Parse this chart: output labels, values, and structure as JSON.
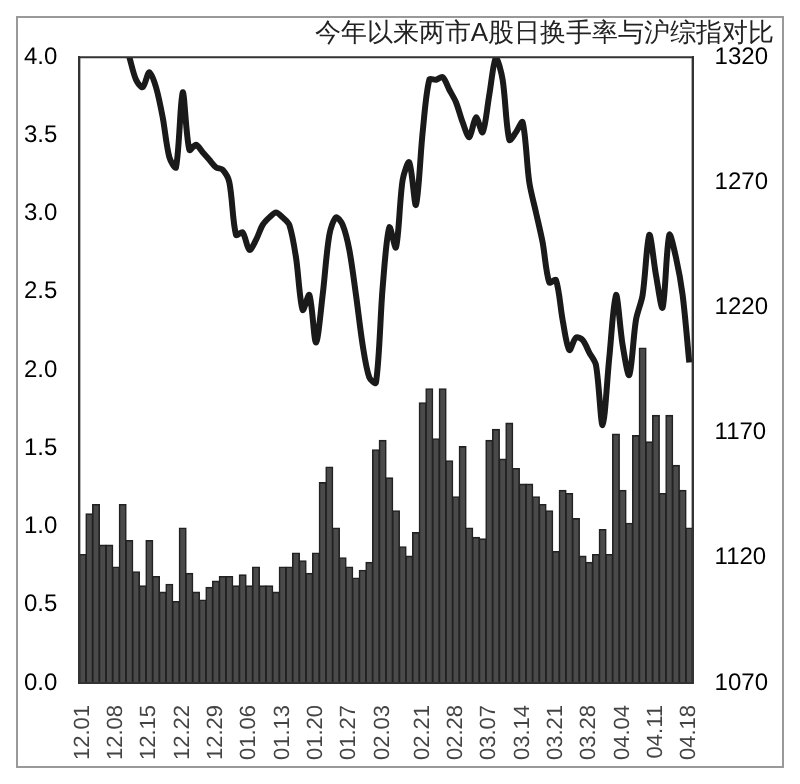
{
  "chart_data": {
    "type": "bar",
    "title": "今年以来两市A股日换手率与沪综指对比",
    "categories": [
      "12.01",
      null,
      null,
      null,
      null,
      "12.08",
      null,
      null,
      null,
      null,
      "12.15",
      null,
      null,
      null,
      null,
      "12.22",
      null,
      null,
      null,
      null,
      "12.29",
      null,
      null,
      null,
      null,
      "01.06",
      null,
      null,
      null,
      null,
      "01.13",
      null,
      null,
      null,
      null,
      "01.20",
      null,
      null,
      null,
      null,
      "01.27",
      null,
      null,
      null,
      null,
      "02.03",
      null,
      null,
      null,
      null,
      null,
      "02.21",
      null,
      null,
      null,
      null,
      "02.28",
      null,
      null,
      null,
      null,
      "03.07",
      null,
      null,
      null,
      null,
      "03.14",
      null,
      null,
      null,
      null,
      "03.21",
      null,
      null,
      null,
      null,
      "03.28",
      null,
      null,
      null,
      null,
      "04.04",
      null,
      null,
      null,
      null,
      "04.11",
      null,
      null,
      null,
      null,
      "04.18"
    ],
    "series": [
      {
        "color": "#4a4a4a",
        "values": [
          0.82,
          1.08,
          1.14,
          0.88,
          0.88,
          0.74,
          1.14,
          0.91,
          0.71,
          0.62,
          0.91,
          0.68,
          0.58,
          0.63,
          0.52,
          0.99,
          0.7,
          0.58,
          0.53,
          0.61,
          0.65,
          0.68,
          0.68,
          0.62,
          0.69,
          0.62,
          0.74,
          0.62,
          0.62,
          0.58,
          0.74,
          0.74,
          0.83,
          0.78,
          0.7,
          0.83,
          1.28,
          1.38,
          0.99,
          0.8,
          0.74,
          0.67,
          0.72,
          0.77,
          1.49,
          1.55,
          1.31,
          1.1,
          0.87,
          0.81,
          0.96,
          1.79,
          1.88,
          1.56,
          1.88,
          1.42,
          1.19,
          1.51,
          0.99,
          0.93,
          0.92,
          1.55,
          1.62,
          1.43,
          1.66,
          1.37,
          1.27,
          1.27,
          1.19,
          1.14,
          1.1,
          0.84,
          1.23,
          1.21,
          1.05,
          0.81,
          0.77,
          0.82,
          0.98,
          0.82,
          1.59,
          1.23,
          1.02,
          1.58,
          2.14,
          1.54,
          1.71,
          1.21,
          1.71,
          1.39,
          1.23,
          0.99
        ]
      },
      {
        "type": "line",
        "axis": "y2",
        "color": "#1a1a1a",
        "values": [
          null,
          null,
          null,
          null,
          null,
          null,
          null,
          1320,
          1311,
          1308,
          1314,
          1308,
          1296,
          1280,
          1276,
          1306,
          1283,
          1285,
          1282,
          1279,
          1276,
          1275,
          1270,
          1249,
          1250,
          1243,
          1247,
          1253,
          1256,
          1258,
          1256,
          1253,
          1240,
          1219,
          1225,
          1206,
          1225,
          1249,
          1256,
          1253,
          1243,
          1225,
          1205,
          1192,
          1190,
          1228,
          1252,
          1244,
          1271,
          1278,
          1261,
          1290,
          1311,
          1311,
          1312,
          1307,
          1302,
          1294,
          1288,
          1296,
          1290,
          1305,
          1320,
          1311,
          1287,
          1290,
          1294,
          1270,
          1258,
          1246,
          1230,
          1231,
          1215,
          1203,
          1208,
          1207,
          1202,
          1197,
          1173,
          1200,
          1225,
          1205,
          1193,
          1215,
          1225,
          1249,
          1233,
          1220,
          1249,
          1240,
          1225,
          1198
        ]
      }
    ],
    "ylim": [
      0,
      4
    ],
    "yticks": [
      {
        "value": 0,
        "label": "0.0"
      },
      0.5,
      {
        "value": 1,
        "label": "1.0"
      },
      1.5,
      {
        "value": 2,
        "label": "2.0"
      },
      2.5,
      {
        "value": 3,
        "label": "3.0"
      },
      3.5,
      {
        "value": 4,
        "label": "4.0"
      }
    ],
    "y2lim": [
      1070,
      1320
    ],
    "y2ticks": [
      1070,
      1120,
      1170,
      1220,
      1270,
      1320
    ]
  }
}
